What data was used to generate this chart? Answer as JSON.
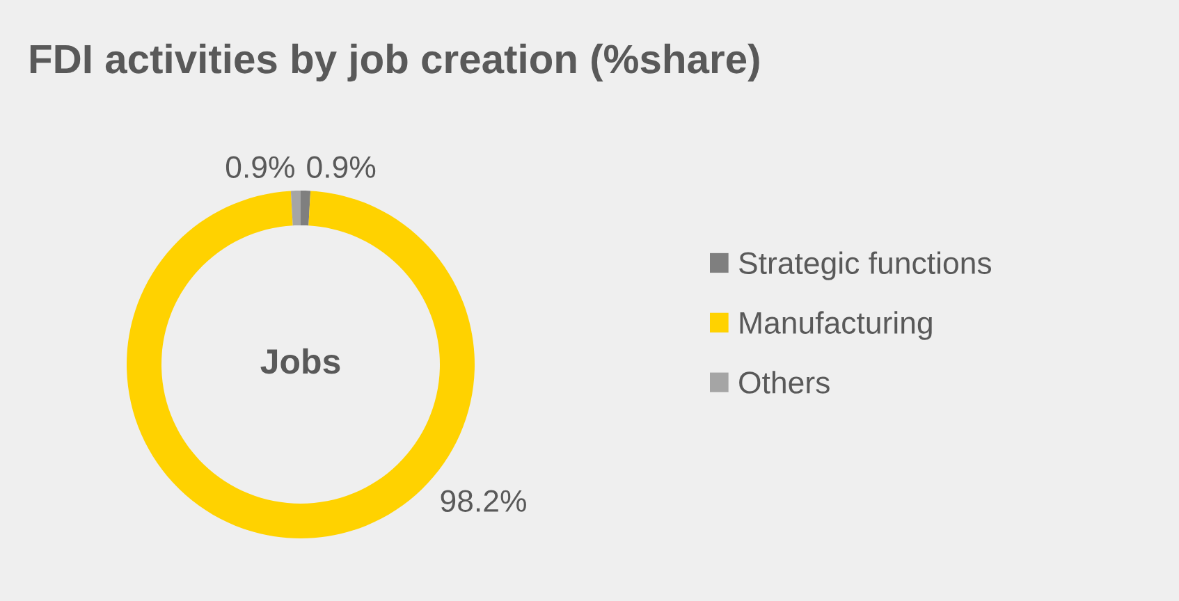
{
  "chart_data": {
    "type": "donut",
    "title": "FDI activities by job creation (%share)",
    "categories": [
      "Strategic functions",
      "Manufacturing",
      "Others"
    ],
    "values": [
      0.9,
      98.2,
      0.9
    ],
    "colors": [
      "#7f7f7f",
      "#ffd200",
      "#a5a5a5"
    ],
    "value_labels": [
      "0.9%",
      "98.2%",
      "0.9%"
    ],
    "annotations": [
      "Jobs"
    ],
    "legend": "right"
  }
}
